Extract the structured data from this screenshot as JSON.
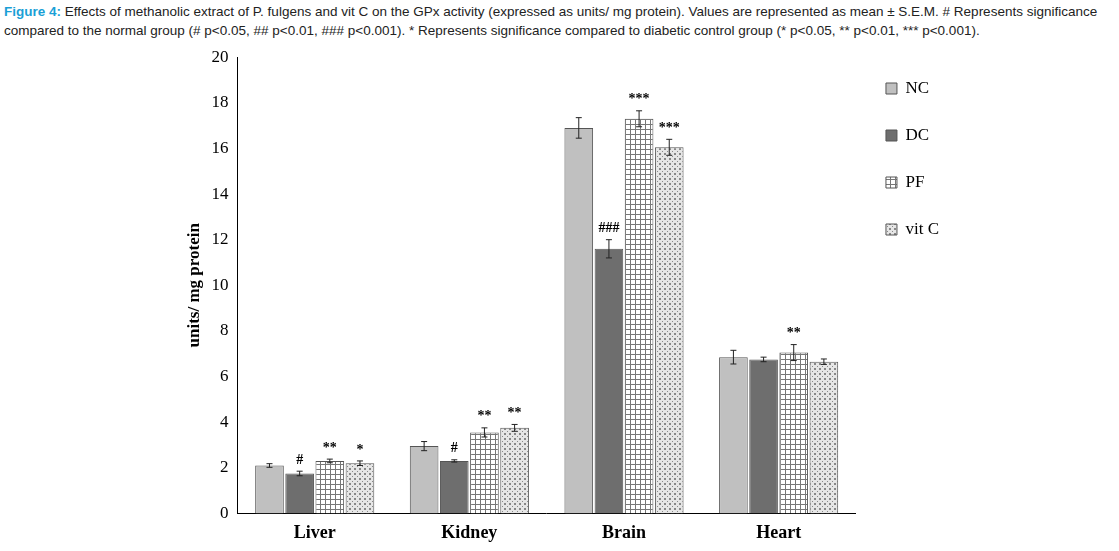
{
  "chart_data": {
    "type": "bar",
    "title": "Figure 4:",
    "subtitle": "Effects of methanolic extract of P. fulgens and vit C on the GPx activity (expressed as units/ mg protein). Values are represented as mean ± S.E.M. # Represents significance compared to the normal group (# p<0.05, ## p<0.01, ### p<0.001). * Represents significance compared to diabetic control group (* p<0.05, ** p<0.01, *** p<0.001).",
    "y_label": "units/ mg protein",
    "categories": [
      "Liver",
      "Kidney",
      "Brain",
      "Heart"
    ],
    "series": [
      {
        "name": "NC",
        "color": "#c0c0c0",
        "values": [
          2.1,
          2.95,
          16.9,
          6.85
        ],
        "error": [
          0.08,
          0.2,
          0.45,
          0.3
        ],
        "significance": [
          null,
          null,
          null,
          null
        ]
      },
      {
        "name": "DC",
        "color": "#6e6e6e",
        "values": [
          1.75,
          2.3,
          11.6,
          6.75
        ],
        "error": [
          0.1,
          0.05,
          0.4,
          0.1
        ],
        "significance": [
          "#",
          "#",
          "###",
          null
        ]
      },
      {
        "name": "PF",
        "color": "#ffffff",
        "values": [
          2.3,
          3.55,
          17.3,
          7.05
        ],
        "error": [
          0.08,
          0.2,
          0.35,
          0.35
        ],
        "significance": [
          "**",
          "**",
          "***",
          "**"
        ]
      },
      {
        "name": "vit C",
        "color": "#e6e6e6",
        "values": [
          2.2,
          3.75,
          16.05,
          6.65
        ],
        "error": [
          0.1,
          0.15,
          0.35,
          0.12
        ],
        "significance": [
          "*",
          "**",
          "***",
          null
        ]
      }
    ],
    "ylim": [
      0,
      20
    ],
    "yticks": [
      0,
      2,
      4,
      6,
      8,
      10,
      12,
      14,
      16,
      18,
      20
    ],
    "grid": false,
    "legend": "right"
  }
}
